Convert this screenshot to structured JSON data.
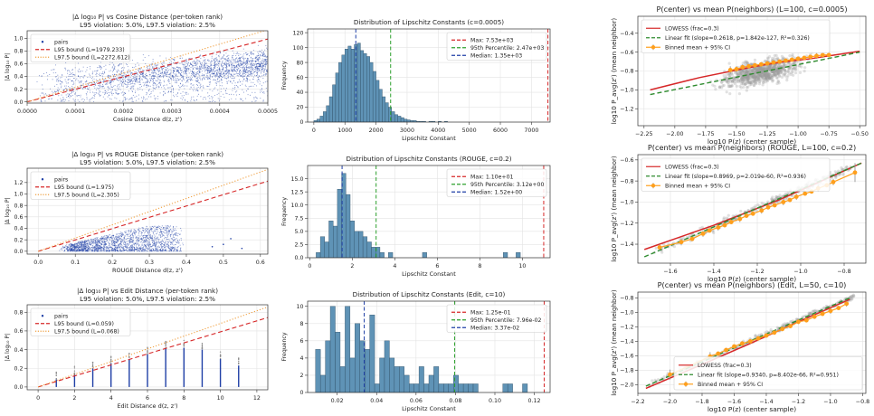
{
  "colors": {
    "blue": "#1f3fa6",
    "red": "#d62728",
    "orange": "#f0a040",
    "green": "#2ca02c",
    "bar": "#5f93b6",
    "gray": "#7f7f7f",
    "lowess": "#d62728",
    "fit": "#2e8b2e",
    "binned": "#ff9f1c"
  },
  "chart_data": [
    {
      "type": "scatter",
      "title": "|Δ log₁₀ P| vs Cosine Distance (per-token rank)",
      "subtitle": "L95 violation: 5.0%, L97.5 violation: 2.5%",
      "xlabel": "Cosine Distance d(z, z')",
      "ylabel": "|Δ log₁₀ P|",
      "xlim": [
        0.0,
        0.0005
      ],
      "ylim": [
        -0.02,
        1.12
      ],
      "xticks": [
        0.0,
        0.0001,
        0.0002,
        0.0003,
        0.0004,
        0.0005
      ],
      "xticklabels": [
        "0.0000",
        "0.0001",
        "0.0002",
        "0.0003",
        "0.0004",
        "0.0005"
      ],
      "yticks": [
        0.0,
        0.2,
        0.4,
        0.6,
        0.8,
        1.0
      ],
      "yticklabels": [
        "0.0",
        "0.2",
        "0.4",
        "0.6",
        "0.8",
        "1.0"
      ],
      "grid": true,
      "legend": "upper-left",
      "series": [
        {
          "name": "pairs",
          "kind": "scatter",
          "color": "blue"
        },
        {
          "name": "L95 bound (L=1979.233)",
          "kind": "line",
          "style": "dashed",
          "color": "red",
          "slope": 1979.233
        },
        {
          "name": "L97.5 bound (L=2272.612)",
          "kind": "line",
          "style": "dotted",
          "color": "orange",
          "slope": 2272.612
        }
      ]
    },
    {
      "type": "bar",
      "title": "Distribution of Lipschitz Constants (c=0.0005)",
      "xlabel": "Lipschitz Constant",
      "ylabel": "Frequency",
      "xlim": [
        -200,
        7600
      ],
      "ylim": [
        0,
        125
      ],
      "xticks": [
        0,
        1000,
        2000,
        3000,
        4000,
        5000,
        6000,
        7000
      ],
      "xticklabels": [
        "0",
        "1000",
        "2000",
        "3000",
        "4000",
        "5000",
        "6000",
        "7000"
      ],
      "yticks": [
        0,
        20,
        40,
        60,
        80,
        100,
        120
      ],
      "yticklabels": [
        "0",
        "20",
        "40",
        "60",
        "80",
        "100",
        "120"
      ],
      "grid": true,
      "legend": "upper-right",
      "bin_start": 0,
      "bin_width": 100,
      "values": [
        2,
        4,
        8,
        14,
        22,
        34,
        50,
        66,
        80,
        90,
        98,
        102,
        98,
        104,
        106,
        96,
        92,
        88,
        80,
        68,
        56,
        44,
        34,
        26,
        20,
        14,
        10,
        8,
        6,
        4,
        3,
        2,
        2,
        1,
        1,
        1,
        0,
        1,
        1,
        0,
        1,
        0,
        1
      ],
      "vlines": [
        {
          "name": "Max: 7.53e+03",
          "x": 7530,
          "color": "red"
        },
        {
          "name": "95th Percentile: 2.47e+03",
          "x": 2470,
          "color": "green"
        },
        {
          "name": "Median: 1.35e+03",
          "x": 1350,
          "color": "blue"
        }
      ]
    },
    {
      "type": "scatter",
      "title": "P(center) vs mean P(neighbors) (L=100, c=0.0005)",
      "xlabel": "log10 P(z) (center sample)",
      "ylabel": "log10 P_avg(z') (mean neighbor)",
      "xlim": [
        -2.3,
        -0.45
      ],
      "ylim": [
        -1.38,
        -0.22
      ],
      "xticks": [
        -2.25,
        -2.0,
        -1.75,
        -1.5,
        -1.25,
        -1.0,
        -0.75,
        -0.5
      ],
      "xticklabels": [
        "−2.25",
        "−2.00",
        "−1.75",
        "−1.50",
        "−1.25",
        "−1.00",
        "−0.75",
        "−0.50"
      ],
      "yticks": [
        -1.2,
        -1.0,
        -0.8,
        -0.6,
        -0.4
      ],
      "yticklabels": [
        "−1.2",
        "−1.0",
        "−0.8",
        "−0.6",
        "−0.4"
      ],
      "grid": true,
      "legend": "upper-left",
      "series": [
        {
          "name": "LOWESS (frac=0.3)",
          "kind": "line",
          "color": "lowess",
          "x": [
            -2.2,
            -1.8,
            -1.5,
            -1.3,
            -1.1,
            -0.9,
            -0.7,
            -0.5
          ],
          "y": [
            -1.0,
            -0.87,
            -0.79,
            -0.74,
            -0.7,
            -0.67,
            -0.63,
            -0.59
          ]
        },
        {
          "name": "Linear fit (slope=0.2618, p=1.842e-127, R²=0.326)",
          "kind": "line",
          "style": "dashed",
          "color": "fit",
          "x": [
            -2.2,
            -0.5
          ],
          "y": [
            -1.05,
            -0.6
          ]
        },
        {
          "name": "Binned mean + 95% CI",
          "kind": "errorbar",
          "color": "binned",
          "x": [
            -1.55,
            -1.5,
            -1.45,
            -1.4,
            -1.35,
            -1.3,
            -1.25,
            -1.2,
            -1.15,
            -1.1,
            -1.05,
            -1.0,
            -0.95,
            -0.9,
            -0.85,
            -0.8,
            -0.75
          ],
          "y": [
            -0.79,
            -0.78,
            -0.76,
            -0.75,
            -0.74,
            -0.73,
            -0.72,
            -0.71,
            -0.7,
            -0.69,
            -0.68,
            -0.67,
            -0.66,
            -0.65,
            -0.64,
            -0.63,
            -0.63
          ],
          "err": [
            0.04,
            0.03,
            0.03,
            0.02,
            0.02,
            0.02,
            0.02,
            0.02,
            0.02,
            0.02,
            0.02,
            0.02,
            0.02,
            0.02,
            0.03,
            0.03,
            0.04
          ]
        }
      ]
    },
    {
      "type": "scatter",
      "title": "|Δ log₁₀ P| vs ROUGE Distance (per-token rank)",
      "subtitle": "L95 violation: 5.0%, L97.5 violation: 2.5%",
      "xlabel": "ROUGE Distance d(z, z')",
      "ylabel": "|Δ log₁₀ P|",
      "xlim": [
        -0.03,
        0.62
      ],
      "ylim": [
        -0.05,
        1.45
      ],
      "xticks": [
        0.0,
        0.1,
        0.2,
        0.3,
        0.4,
        0.5,
        0.6
      ],
      "xticklabels": [
        "0.0",
        "0.1",
        "0.2",
        "0.3",
        "0.4",
        "0.5",
        "0.6"
      ],
      "yticks": [
        0.0,
        0.2,
        0.4,
        0.6,
        0.8,
        1.0,
        1.2
      ],
      "yticklabels": [
        "0.0",
        "0.2",
        "0.4",
        "0.6",
        "0.8",
        "1.0",
        "1.2"
      ],
      "grid": true,
      "legend": "upper-left",
      "series": [
        {
          "name": "pairs",
          "kind": "scatter",
          "color": "blue"
        },
        {
          "name": "L95 bound (L=1.975)",
          "kind": "line",
          "style": "dashed",
          "color": "red",
          "slope": 1.975
        },
        {
          "name": "L97.5 bound (L=2.305)",
          "kind": "line",
          "style": "dotted",
          "color": "orange",
          "slope": 2.305
        }
      ]
    },
    {
      "type": "bar",
      "title": "Distribution of Lipschitz Constants (ROUGE, c=0.2)",
      "xlabel": "Lipschitz Constant",
      "ylabel": "Frequency",
      "xlim": [
        -0.1,
        11.3
      ],
      "ylim": [
        0,
        17.5
      ],
      "xticks": [
        0,
        2,
        4,
        6,
        8,
        10
      ],
      "xticklabels": [
        "0",
        "2",
        "4",
        "6",
        "8",
        "10"
      ],
      "yticks": [
        0.0,
        2.5,
        5.0,
        7.5,
        10.0,
        12.5,
        15.0
      ],
      "yticklabels": [
        "0.0",
        "2.5",
        "5.0",
        "7.5",
        "10.0",
        "12.5",
        "15.0"
      ],
      "grid": true,
      "legend": "upper-right",
      "bin_start": 0.3,
      "bin_width": 0.2,
      "values": [
        1,
        4,
        3,
        7,
        6,
        13,
        16,
        12,
        7,
        5,
        5,
        4,
        3,
        2,
        2,
        1,
        0,
        1,
        0,
        0,
        0,
        0,
        0,
        0,
        0,
        1,
        0,
        0,
        0,
        0,
        0,
        0,
        0,
        0,
        0,
        0,
        0,
        0,
        0,
        0,
        0,
        0,
        0,
        0,
        1,
        0,
        0,
        1
      ],
      "vlines": [
        {
          "name": "Max: 1.10e+01",
          "x": 11.0,
          "color": "red"
        },
        {
          "name": "95th Percentile: 3.12e+00",
          "x": 3.12,
          "color": "green"
        },
        {
          "name": "Median: 1.52e+00",
          "x": 1.52,
          "color": "blue"
        }
      ]
    },
    {
      "type": "scatter",
      "title": "P(center) vs mean P(neighbors) (ROUGE, L=100, c=0.2)",
      "xlabel": "log10 P(z) (center sample)",
      "ylabel": "log10 P_avg(z') (mean neighbor)",
      "xlim": [
        -1.75,
        -0.7
      ],
      "ylim": [
        -1.58,
        -0.55
      ],
      "xticks": [
        -1.6,
        -1.4,
        -1.2,
        -1.0,
        -0.8
      ],
      "xticklabels": [
        "−1.6",
        "−1.4",
        "−1.2",
        "−1.0",
        "−0.8"
      ],
      "yticks": [
        -1.4,
        -1.2,
        -1.0,
        -0.8,
        -0.6
      ],
      "yticklabels": [
        "−1.4",
        "−1.2",
        "−1.0",
        "−0.8",
        "−0.6"
      ],
      "grid": true,
      "legend": "upper-left",
      "series": [
        {
          "name": "LOWESS (frac=0.3)",
          "kind": "line",
          "color": "lowess",
          "x": [
            -1.72,
            -1.4,
            -1.1,
            -0.72
          ],
          "y": [
            -1.45,
            -1.22,
            -0.98,
            -0.63
          ]
        },
        {
          "name": "Linear fit (slope=0.8969, p=2.019e-60, R²=0.936)",
          "kind": "line",
          "style": "dashed",
          "color": "fit",
          "x": [
            -1.72,
            -0.72
          ],
          "y": [
            -1.52,
            -0.63
          ]
        },
        {
          "name": "Binned mean + 95% CI",
          "kind": "errorbar",
          "color": "binned",
          "x": [
            -1.65,
            -1.55,
            -1.5,
            -1.45,
            -1.42,
            -1.38,
            -1.35,
            -1.32,
            -1.28,
            -1.25,
            -1.22,
            -1.18,
            -1.15,
            -1.12,
            -1.08,
            -1.05,
            -1.02,
            -0.98,
            -0.95,
            -0.92,
            -0.88,
            -0.85,
            -0.75
          ],
          "y": [
            -1.43,
            -1.38,
            -1.35,
            -1.3,
            -1.27,
            -1.24,
            -1.22,
            -1.19,
            -1.16,
            -1.13,
            -1.11,
            -1.08,
            -1.05,
            -1.03,
            -1.0,
            -0.98,
            -0.95,
            -0.92,
            -0.9,
            -0.87,
            -0.84,
            -0.81,
            -0.72
          ],
          "err": [
            0.03,
            0.03,
            0.02,
            0.03,
            0.02,
            0.03,
            0.02,
            0.02,
            0.03,
            0.02,
            0.02,
            0.03,
            0.02,
            0.02,
            0.03,
            0.02,
            0.03,
            0.02,
            0.02,
            0.03,
            0.02,
            0.03,
            0.09
          ]
        }
      ]
    },
    {
      "type": "scatter",
      "title": "|Δ log₁₀ P| vs Edit Distance (per-token rank)",
      "subtitle": "L95 violation: 5.0%, L97.5 violation: 2.5%",
      "xlabel": "Edit Distance d(z, z')",
      "ylabel": "|Δ log₁₀ P|",
      "xlim": [
        -0.6,
        12.6
      ],
      "ylim": [
        -0.03,
        0.88
      ],
      "xticks": [
        0,
        2,
        4,
        6,
        8,
        10,
        12
      ],
      "xticklabels": [
        "0",
        "2",
        "4",
        "6",
        "8",
        "10",
        "12"
      ],
      "yticks": [
        0.0,
        0.2,
        0.4,
        0.6,
        0.8
      ],
      "yticklabels": [
        "0.0",
        "0.2",
        "0.4",
        "0.6",
        "0.8"
      ],
      "grid": true,
      "legend": "upper-left",
      "series": [
        {
          "name": "pairs",
          "kind": "scatter",
          "color": "blue",
          "x": [
            1,
            2,
            3,
            4,
            5,
            6,
            7,
            8,
            9,
            10,
            11
          ],
          "ymax": [
            0.08,
            0.14,
            0.2,
            0.25,
            0.3,
            0.35,
            0.41,
            0.42,
            0.4,
            0.3,
            0.23
          ]
        },
        {
          "name": "L95 bound (L=0.059)",
          "kind": "line",
          "style": "dashed",
          "color": "red",
          "slope": 0.059
        },
        {
          "name": "L97.5 bound (L=0.068)",
          "kind": "line",
          "style": "dotted",
          "color": "orange",
          "slope": 0.068
        }
      ]
    },
    {
      "type": "bar",
      "title": "Distribution of Lipschitz Constants (Edit, c=10)",
      "xlabel": "Lipschitz Constant",
      "ylabel": "Frequency",
      "xlim": [
        0.005,
        0.128
      ],
      "ylim": [
        0,
        10.6
      ],
      "xticks": [
        0.02,
        0.04,
        0.06,
        0.08,
        0.1,
        0.12
      ],
      "xticklabels": [
        "0.02",
        "0.04",
        "0.06",
        "0.08",
        "0.10",
        "0.12"
      ],
      "yticks": [
        0,
        2,
        4,
        6,
        8,
        10
      ],
      "yticklabels": [
        "0",
        "2",
        "4",
        "6",
        "8",
        "10"
      ],
      "grid": true,
      "legend": "upper-right",
      "bin_start": 0.009,
      "bin_width": 0.0025,
      "values": [
        5,
        2,
        6,
        10,
        7,
        3,
        10,
        4,
        8,
        6,
        5,
        9,
        1,
        4,
        6,
        4,
        3,
        3,
        2,
        1,
        1,
        3,
        1,
        2,
        3,
        1,
        1,
        1,
        2,
        1,
        1,
        1,
        1,
        0,
        0,
        0,
        0,
        0,
        1,
        1,
        0,
        0,
        1,
        0,
        0,
        0
      ],
      "vlines": [
        {
          "name": "Max: 1.25e-01",
          "x": 0.125,
          "color": "red"
        },
        {
          "name": "95th Percentile: 7.96e-02",
          "x": 0.0796,
          "color": "green"
        },
        {
          "name": "Median: 3.37e-02",
          "x": 0.0337,
          "color": "blue"
        }
      ]
    },
    {
      "type": "scatter",
      "title": "P(center) vs mean P(neighbors) (Edit, L=50, c=10)",
      "xlabel": "log10 P(z) (center sample)",
      "ylabel": "log10 P_avg(z') (mean neighbor)",
      "xlim": [
        -2.2,
        -0.78
      ],
      "ylim": [
        -2.12,
        -0.72
      ],
      "xticks": [
        -2.2,
        -2.0,
        -1.8,
        -1.6,
        -1.4,
        -1.2,
        -1.0,
        -0.8
      ],
      "xticklabels": [
        "−2.2",
        "−2.0",
        "−1.8",
        "−1.6",
        "−1.4",
        "−1.2",
        "−1.0",
        "−0.8"
      ],
      "yticks": [
        -2.0,
        -1.8,
        -1.6,
        -1.4,
        -1.2,
        -1.0,
        -0.8
      ],
      "yticklabels": [
        "−2.0",
        "−1.8",
        "−1.6",
        "−1.4",
        "−1.2",
        "−1.0",
        "−0.8"
      ],
      "grid": true,
      "legend": "lower-right",
      "series": [
        {
          "name": "LOWESS (frac=0.3)",
          "kind": "line",
          "color": "lowess",
          "x": [
            -2.15,
            -1.8,
            -1.5,
            -1.2,
            -0.88
          ],
          "y": [
            -2.05,
            -1.72,
            -1.43,
            -1.13,
            -0.82
          ]
        },
        {
          "name": "Linear fit (slope=0.9340, p=8.402e-66, R²=0.951)",
          "kind": "line",
          "style": "dashed",
          "color": "fit",
          "x": [
            -2.15,
            -0.88
          ],
          "y": [
            -2.02,
            -0.8
          ]
        },
        {
          "name": "Binned mean + 95% CI",
          "kind": "errorbar",
          "color": "binned",
          "x": [
            -2.0,
            -1.75,
            -1.7,
            -1.65,
            -1.6,
            -1.55,
            -1.5,
            -1.45,
            -1.4,
            -1.35,
            -1.3,
            -1.25,
            -1.2,
            -1.15,
            -1.1,
            -1.05,
            -1.0,
            -0.95,
            -0.9
          ],
          "y": [
            -1.86,
            -1.61,
            -1.57,
            -1.52,
            -1.47,
            -1.43,
            -1.4,
            -1.36,
            -1.32,
            -1.28,
            -1.23,
            -1.19,
            -1.13,
            -1.11,
            -1.06,
            -1.02,
            -0.98,
            -0.94,
            -0.88
          ],
          "err": [
            0.07,
            0.06,
            0.03,
            0.03,
            0.02,
            0.03,
            0.03,
            0.02,
            0.03,
            0.02,
            0.03,
            0.02,
            0.03,
            0.02,
            0.03,
            0.03,
            0.04,
            0.03,
            0.04
          ]
        }
      ]
    }
  ]
}
